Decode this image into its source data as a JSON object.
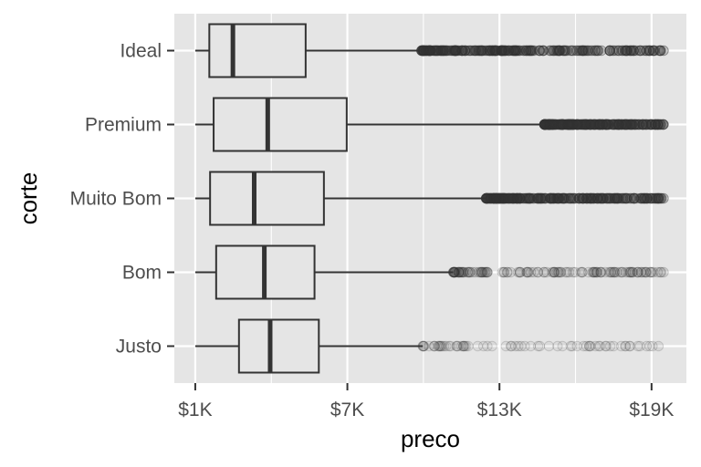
{
  "chart_data": {
    "type": "boxplot",
    "orientation": "horizontal",
    "xlabel": "preco",
    "ylabel": "corte",
    "xlim": [
      -500,
      19700
    ],
    "x_ticks": [
      {
        "value": 326,
        "label": "$1K"
      },
      {
        "value": 6326,
        "label": "$7K"
      },
      {
        "value": 12326,
        "label": "$13K"
      },
      {
        "value": 18326,
        "label": "$19K"
      }
    ],
    "x_minor_ticks": [
      3326,
      9326,
      15326
    ],
    "grid": true,
    "categories": [
      "Ideal",
      "Premium",
      "Muito Bom",
      "Bom",
      "Justo"
    ],
    "boxes": [
      {
        "category": "Ideal",
        "whisker_low": 326,
        "q1": 880,
        "median": 1810,
        "q3": 4680,
        "whisker_high": 9250,
        "outlier_min": 9250,
        "outlier_max": 18800,
        "outlier_density": "heavy"
      },
      {
        "category": "Premium",
        "whisker_low": 326,
        "q1": 1050,
        "median": 3185,
        "q3": 6300,
        "whisker_high": 14100,
        "outlier_min": 14100,
        "outlier_max": 18800,
        "outlier_density": "heavy"
      },
      {
        "category": "Muito Bom",
        "whisker_low": 326,
        "q1": 910,
        "median": 2650,
        "q3": 5400,
        "whisker_high": 11800,
        "outlier_min": 11800,
        "outlier_max": 18800,
        "outlier_density": "heavy"
      },
      {
        "category": "Bom",
        "whisker_low": 326,
        "q1": 1150,
        "median": 3050,
        "q3": 5030,
        "whisker_high": 10500,
        "outlier_min": 10500,
        "outlier_max": 18800,
        "outlier_density": "medium"
      },
      {
        "category": "Justo",
        "whisker_low": 326,
        "q1": 2050,
        "median": 3280,
        "q3": 5200,
        "whisker_high": 9300,
        "outlier_min": 9300,
        "outlier_max": 18600,
        "outlier_density": "light"
      }
    ],
    "colors": {
      "panel_background": "#e5e5e5",
      "gridline": "#ffffff",
      "box_stroke": "#333333",
      "box_fill": "#e5e5e5",
      "outlier": "#333333",
      "tick_mark": "#333333",
      "tick_label": "#4d4d4d",
      "axis_title": "#000000"
    }
  }
}
